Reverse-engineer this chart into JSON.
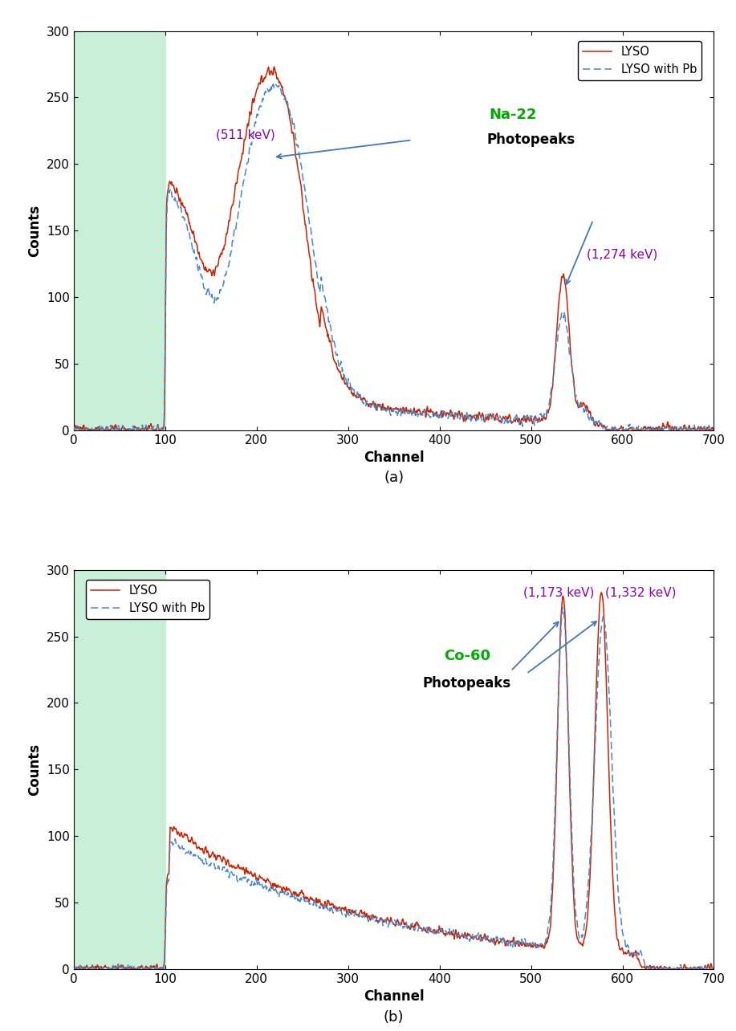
{
  "fig_width": 9.17,
  "fig_height": 12.84,
  "background_color": "#ffffff",
  "shaded_region_color": "#c8f0d8",
  "shaded_x_end": 100,
  "x_min": 0,
  "x_max": 700,
  "y_min": 0,
  "y_max": 300,
  "xlabel": "Channel",
  "ylabel": "Counts",
  "lyso_color": "#cc2200",
  "lyso_pb_color": "#4488cc",
  "label_a": "(a)",
  "label_b": "(b)",
  "legend_lyso": "LYSO",
  "legend_lyso_pb": "LYSO with Pb",
  "na22_source_label": "Na-22",
  "na22_photopeaks_label": "Photopeaks",
  "na22_511_label": "(511 keV)",
  "na22_1274_label": "(1,274 keV)",
  "co60_source_label": "Co-60",
  "co60_photopeaks_label": "Photopeaks",
  "co60_1173_label": "(1,173 keV)",
  "co60_1332_label": "(1,332 keV)",
  "source_label_color": "#00aa00",
  "peak_label_color": "#8800bb",
  "annotation_arrow_color": "#4477bb"
}
